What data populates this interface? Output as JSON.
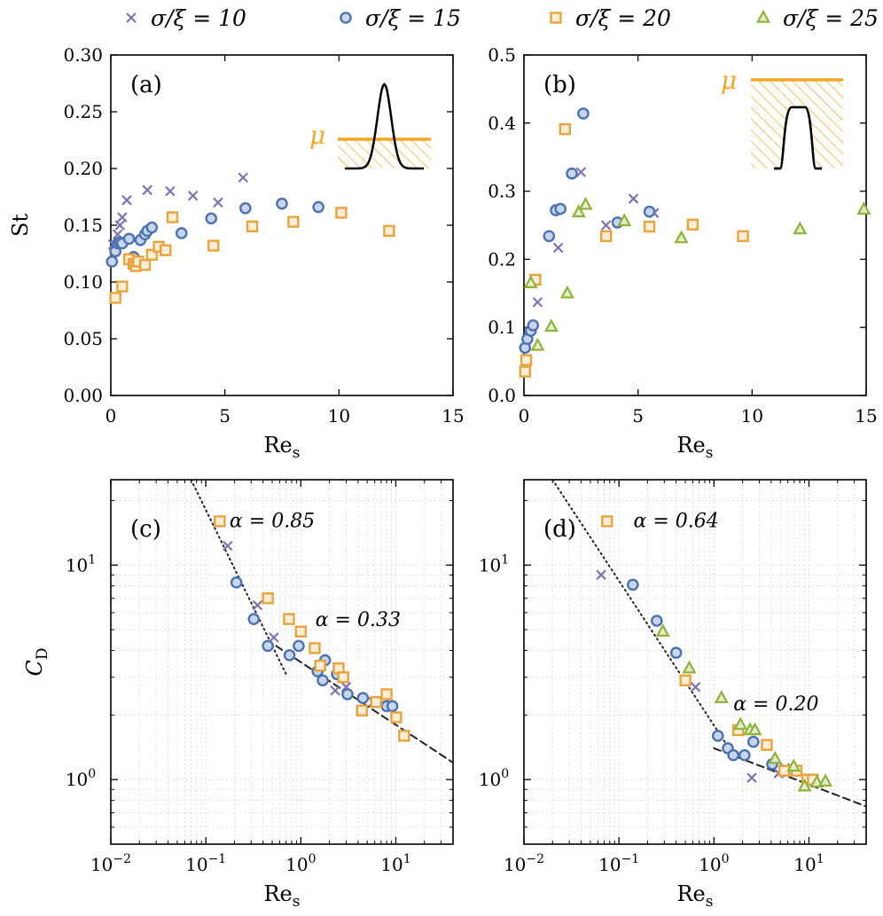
{
  "colors": {
    "s10": "#8172b2",
    "s15": "#4c72b0",
    "s20": "#e8a33d",
    "s25": "#8fb339",
    "s15_fill": "#c9d6ea",
    "s20_fill": "#fbeed8",
    "s25_fill": "#e3edce",
    "inset": "#f5a623"
  },
  "legend": [
    {
      "key": "s10",
      "marker": "x",
      "label": "σ/ξ = 10"
    },
    {
      "key": "s15",
      "marker": "o",
      "label": "σ/ξ = 15"
    },
    {
      "key": "s20",
      "marker": "s",
      "label": "σ/ξ = 20"
    },
    {
      "key": "s25",
      "marker": "^",
      "label": "σ/ξ = 25"
    }
  ],
  "chart_data": [
    {
      "id": "a",
      "type": "scatter",
      "panel_label": "(a)",
      "xlabel": "Re",
      "xlabel_sub": "s",
      "ylabel": "St",
      "xlim": [
        0,
        15
      ],
      "ylim": [
        0,
        0.3
      ],
      "xscale": "linear",
      "yscale": "linear",
      "xticks": [
        "0",
        "5",
        "10",
        "15"
      ],
      "yticks": [
        "0.00",
        "0.05",
        "0.10",
        "0.15",
        "0.20",
        "0.25",
        "0.30"
      ],
      "inset": {
        "label": "μ",
        "shape": "gaussian"
      },
      "series": [
        {
          "key": "s10",
          "marker": "x",
          "points": [
            [
              0.1,
              0.133
            ],
            [
              0.3,
              0.142
            ],
            [
              0.4,
              0.15
            ],
            [
              0.5,
              0.157
            ],
            [
              0.7,
              0.172
            ],
            [
              1.6,
              0.181
            ],
            [
              2.6,
              0.18
            ],
            [
              3.6,
              0.176
            ],
            [
              4.7,
              0.17
            ],
            [
              5.8,
              0.192
            ]
          ]
        },
        {
          "key": "s15",
          "marker": "o",
          "points": [
            [
              0.05,
              0.118
            ],
            [
              0.2,
              0.127
            ],
            [
              0.3,
              0.134
            ],
            [
              0.4,
              0.135
            ],
            [
              0.5,
              0.134
            ],
            [
              0.8,
              0.138
            ],
            [
              1.0,
              0.122
            ],
            [
              1.3,
              0.137
            ],
            [
              1.5,
              0.142
            ],
            [
              1.6,
              0.145
            ],
            [
              1.8,
              0.148
            ],
            [
              3.1,
              0.143
            ],
            [
              4.4,
              0.156
            ],
            [
              5.9,
              0.165
            ],
            [
              7.5,
              0.169
            ],
            [
              9.1,
              0.166
            ]
          ]
        },
        {
          "key": "s20",
          "marker": "s",
          "points": [
            [
              0.2,
              0.086
            ],
            [
              0.5,
              0.096
            ],
            [
              0.8,
              0.12
            ],
            [
              1.0,
              0.116
            ],
            [
              1.1,
              0.114
            ],
            [
              1.2,
              0.118
            ],
            [
              1.5,
              0.115
            ],
            [
              1.8,
              0.124
            ],
            [
              2.1,
              0.131
            ],
            [
              2.4,
              0.128
            ],
            [
              2.7,
              0.157
            ],
            [
              4.5,
              0.132
            ],
            [
              6.2,
              0.149
            ],
            [
              8.0,
              0.153
            ],
            [
              10.1,
              0.161
            ],
            [
              12.2,
              0.145
            ]
          ]
        }
      ]
    },
    {
      "id": "b",
      "type": "scatter",
      "panel_label": "(b)",
      "xlabel": "Re",
      "xlabel_sub": "s",
      "ylabel": "",
      "xlim": [
        0,
        15
      ],
      "ylim": [
        0,
        0.5
      ],
      "xscale": "linear",
      "yscale": "linear",
      "xticks": [
        "0",
        "5",
        "10",
        "15"
      ],
      "yticks": [
        "0.0",
        "0.1",
        "0.2",
        "0.3",
        "0.4",
        "0.5"
      ],
      "inset": {
        "label": "μ",
        "shape": "flat-top"
      },
      "series": [
        {
          "key": "s10",
          "marker": "x",
          "points": [
            [
              0.6,
              0.137
            ],
            [
              1.5,
              0.217
            ],
            [
              2.5,
              0.328
            ],
            [
              3.6,
              0.25
            ],
            [
              4.8,
              0.289
            ],
            [
              5.7,
              0.268
            ]
          ]
        },
        {
          "key": "s15",
          "marker": "o",
          "points": [
            [
              0.05,
              0.07
            ],
            [
              0.15,
              0.083
            ],
            [
              0.3,
              0.095
            ],
            [
              0.4,
              0.103
            ],
            [
              1.1,
              0.234
            ],
            [
              1.4,
              0.272
            ],
            [
              1.6,
              0.274
            ],
            [
              2.1,
              0.326
            ],
            [
              2.6,
              0.414
            ],
            [
              4.1,
              0.254
            ],
            [
              5.5,
              0.27
            ]
          ]
        },
        {
          "key": "s20",
          "marker": "s",
          "points": [
            [
              0.05,
              0.035
            ],
            [
              0.1,
              0.052
            ],
            [
              0.5,
              0.17
            ],
            [
              1.8,
              0.391
            ],
            [
              3.6,
              0.234
            ],
            [
              5.5,
              0.248
            ],
            [
              7.4,
              0.251
            ],
            [
              9.6,
              0.234
            ]
          ]
        },
        {
          "key": "s25",
          "marker": "^",
          "points": [
            [
              0.3,
              0.165
            ],
            [
              0.6,
              0.073
            ],
            [
              1.2,
              0.101
            ],
            [
              1.9,
              0.15
            ],
            [
              2.4,
              0.269
            ],
            [
              2.7,
              0.28
            ],
            [
              4.4,
              0.256
            ],
            [
              6.9,
              0.231
            ],
            [
              12.1,
              0.244
            ],
            [
              14.9,
              0.273
            ]
          ]
        }
      ]
    },
    {
      "id": "c",
      "type": "scatter",
      "panel_label": "(c)",
      "xlabel": "Re",
      "xlabel_sub": "s",
      "ylabel": "C",
      "ylabel_sub": "D",
      "xscale": "log",
      "yscale": "log",
      "xlim": [
        0.01,
        40
      ],
      "ylim": [
        0.5,
        25
      ],
      "xticks": [
        {
          "base": "10",
          "exp": "−2"
        },
        {
          "base": "10",
          "exp": "−1"
        },
        {
          "base": "10",
          "exp": "0"
        },
        {
          "base": "10",
          "exp": "1"
        }
      ],
      "yticks": [
        {
          "base": "10",
          "exp": "0"
        },
        {
          "base": "10",
          "exp": "1"
        }
      ],
      "annotations": [
        {
          "text": "α = 0.85",
          "at": [
            0.5,
            15
          ]
        },
        {
          "text": "α = 0.33",
          "at": [
            4,
            5.2
          ]
        }
      ],
      "fit_lines": [
        {
          "style": "dotted",
          "points": [
            [
              0.07,
              25
            ],
            [
              0.7,
              3.1
            ]
          ]
        },
        {
          "style": "dashed",
          "points": [
            [
              0.55,
              4.2
            ],
            [
              40,
              1.2
            ]
          ]
        }
      ],
      "series": [
        {
          "key": "s10",
          "marker": "x",
          "points": [
            [
              0.17,
              12.3
            ],
            [
              0.35,
              6.5
            ],
            [
              0.52,
              4.6
            ],
            [
              2.3,
              2.6
            ],
            [
              3.0,
              2.7
            ],
            [
              5.8,
              2.3
            ]
          ]
        },
        {
          "key": "s15",
          "marker": "o",
          "points": [
            [
              0.21,
              8.3
            ],
            [
              0.32,
              5.6
            ],
            [
              0.45,
              4.2
            ],
            [
              0.76,
              3.8
            ],
            [
              0.95,
              4.2
            ],
            [
              1.5,
              3.2
            ],
            [
              1.7,
              2.9
            ],
            [
              1.8,
              3.6
            ],
            [
              2.4,
              3.1
            ],
            [
              3.1,
              2.5
            ],
            [
              4.5,
              2.4
            ],
            [
              6.2,
              2.3
            ],
            [
              8.0,
              2.2
            ],
            [
              9.2,
              2.2
            ]
          ]
        },
        {
          "key": "s20",
          "marker": "s",
          "points": [
            [
              0.14,
              16.0
            ],
            [
              0.45,
              7.0
            ],
            [
              0.75,
              5.6
            ],
            [
              1.0,
              4.9
            ],
            [
              1.4,
              4.1
            ],
            [
              1.6,
              3.4
            ],
            [
              2.5,
              3.3
            ],
            [
              2.8,
              3.0
            ],
            [
              4.4,
              2.1
            ],
            [
              6.2,
              2.3
            ],
            [
              8.0,
              2.5
            ],
            [
              10.1,
              1.95
            ],
            [
              12.2,
              1.6
            ]
          ]
        }
      ]
    },
    {
      "id": "d",
      "type": "scatter",
      "panel_label": "(d)",
      "xlabel": "Re",
      "xlabel_sub": "s",
      "ylabel": "",
      "xscale": "log",
      "yscale": "log",
      "xlim": [
        0.01,
        40
      ],
      "ylim": [
        0.5,
        25
      ],
      "xticks": [
        {
          "base": "10",
          "exp": "−2"
        },
        {
          "base": "10",
          "exp": "−1"
        },
        {
          "base": "10",
          "exp": "0"
        },
        {
          "base": "10",
          "exp": "1"
        }
      ],
      "yticks": [
        {
          "base": "10",
          "exp": "0"
        },
        {
          "base": "10",
          "exp": "1"
        }
      ],
      "annotations": [
        {
          "text": "α = 0.64",
          "at": [
            0.4,
            15
          ]
        },
        {
          "text": "α = 0.20",
          "at": [
            4.5,
            2.1
          ]
        }
      ],
      "fit_lines": [
        {
          "style": "dotted",
          "points": [
            [
              0.02,
              25
            ],
            [
              1.3,
              1.5
            ]
          ]
        },
        {
          "style": "dashed",
          "points": [
            [
              1.0,
              1.4
            ],
            [
              40,
              0.75
            ]
          ]
        }
      ],
      "series": [
        {
          "key": "s10",
          "marker": "x",
          "points": [
            [
              0.065,
              9.0
            ],
            [
              0.64,
              2.7
            ],
            [
              2.5,
              1.02
            ],
            [
              4.8,
              1.07
            ],
            [
              5.6,
              1.13
            ]
          ]
        },
        {
          "key": "s15",
          "marker": "o",
          "points": [
            [
              0.14,
              8.1
            ],
            [
              0.25,
              5.5
            ],
            [
              0.4,
              3.9
            ],
            [
              1.1,
              1.6
            ],
            [
              1.4,
              1.4
            ],
            [
              1.6,
              1.3
            ],
            [
              2.1,
              1.3
            ],
            [
              2.6,
              1.5
            ],
            [
              4.1,
              1.18
            ],
            [
              5.5,
              1.1
            ]
          ]
        },
        {
          "key": "s20",
          "marker": "s",
          "points": [
            [
              0.075,
              16.0
            ],
            [
              0.5,
              2.9
            ],
            [
              1.8,
              1.7
            ],
            [
              3.6,
              1.45
            ],
            [
              5.5,
              1.1
            ],
            [
              7.4,
              1.1
            ],
            [
              9.6,
              1.0
            ],
            [
              11.0,
              1.0
            ]
          ]
        },
        {
          "key": "s25",
          "marker": "^",
          "points": [
            [
              0.29,
              4.9
            ],
            [
              0.55,
              3.3
            ],
            [
              1.2,
              2.4
            ],
            [
              1.9,
              1.8
            ],
            [
              2.4,
              1.7
            ],
            [
              2.7,
              1.7
            ],
            [
              4.4,
              1.25
            ],
            [
              6.9,
              1.15
            ],
            [
              9.0,
              0.93
            ],
            [
              12.1,
              0.97
            ],
            [
              14.9,
              0.98
            ]
          ]
        }
      ]
    }
  ]
}
